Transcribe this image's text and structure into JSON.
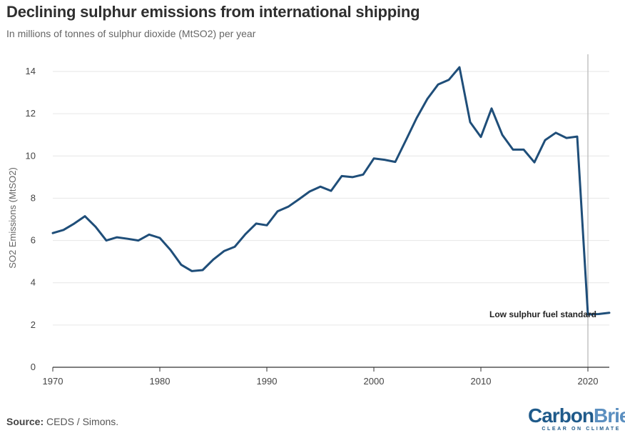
{
  "header": {
    "title": "Declining sulphur emissions from international shipping",
    "subtitle": "In millions of tonnes of sulphur dioxide (MtSO2) per year"
  },
  "footer": {
    "source_label": "Source:",
    "source_text": "CEDS / Simons.",
    "logo_carbon": "Carbon",
    "logo_brief": "Brief",
    "logo_tagline": "CLEAR ON CLIMATE"
  },
  "colors": {
    "line": "#1f4e79",
    "grid": "#e6e6e6",
    "axis": "#333333",
    "marker": "#b5b5b5"
  },
  "chart_data": {
    "type": "line",
    "title": "Declining sulphur emissions from international shipping",
    "xlabel": "",
    "ylabel": "SO2 Emissions (MtSO2)",
    "xlim": [
      1970,
      2022
    ],
    "ylim": [
      0,
      14
    ],
    "grid": true,
    "x_ticks": [
      1970,
      1980,
      1990,
      2000,
      2010,
      2020
    ],
    "y_ticks": [
      0,
      2,
      4,
      6,
      8,
      10,
      12,
      14
    ],
    "series": [
      {
        "name": "SO2 Emissions",
        "x": [
          1970,
          1971,
          1972,
          1973,
          1974,
          1975,
          1976,
          1977,
          1978,
          1979,
          1980,
          1981,
          1982,
          1983,
          1984,
          1985,
          1986,
          1987,
          1988,
          1989,
          1990,
          1991,
          1992,
          1993,
          1994,
          1995,
          1996,
          1997,
          1998,
          1999,
          2000,
          2001,
          2002,
          2003,
          2004,
          2005,
          2006,
          2007,
          2008,
          2009,
          2010,
          2011,
          2012,
          2013,
          2014,
          2015,
          2016,
          2017,
          2018,
          2019,
          2020,
          2021,
          2022
        ],
        "values": [
          6.35,
          6.5,
          6.8,
          7.15,
          6.65,
          6.0,
          6.15,
          6.08,
          6.0,
          6.28,
          6.12,
          5.55,
          4.85,
          4.55,
          4.6,
          5.1,
          5.5,
          5.7,
          6.3,
          6.8,
          6.72,
          7.38,
          7.6,
          7.95,
          8.32,
          8.55,
          8.35,
          9.05,
          9.0,
          9.12,
          9.88,
          9.82,
          9.72,
          10.75,
          11.8,
          12.7,
          13.38,
          13.6,
          14.2,
          11.6,
          10.9,
          12.25,
          11.0,
          10.3,
          10.3,
          9.7,
          10.75,
          11.1,
          10.85,
          10.92,
          2.5,
          2.52,
          2.58
        ]
      }
    ],
    "annotations": [
      {
        "text": "Low sulphur fuel standard",
        "x": 2020,
        "y": 2.5
      }
    ]
  }
}
